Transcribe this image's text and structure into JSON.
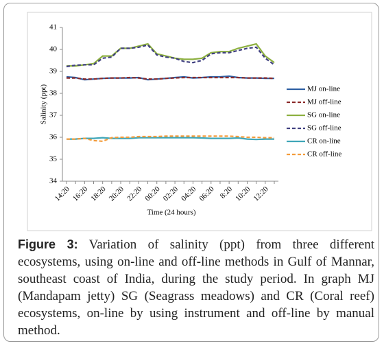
{
  "chart_data": {
    "type": "line",
    "y_label": "Salinity  (ppt)",
    "x_label": "Time  (24 hours)",
    "categories": [
      "14:20",
      null,
      "16:20",
      null,
      "18:20",
      null,
      "20:20",
      null,
      "22:20",
      null,
      "00:20",
      null,
      "02:20",
      null,
      "04:20",
      null,
      "06:20",
      null,
      "8:20",
      null,
      "10:20",
      null,
      "12:20",
      null
    ],
    "ylim": [
      34,
      41
    ],
    "yticks": [
      34,
      35,
      36,
      37,
      38,
      39,
      40,
      41
    ],
    "grid": false,
    "legend_position": "right",
    "series": [
      {
        "name": "MJ on-line",
        "color": "#2e5fa3",
        "dashed": false,
        "values": [
          38.75,
          38.72,
          38.62,
          38.65,
          38.68,
          38.7,
          38.7,
          38.7,
          38.72,
          38.62,
          38.65,
          38.68,
          38.72,
          38.75,
          38.7,
          38.72,
          38.75,
          38.75,
          38.78,
          38.72,
          38.7,
          38.7,
          38.68,
          38.68
        ]
      },
      {
        "name": "MJ off-line",
        "color": "#8b2a2a",
        "dashed": true,
        "values": [
          38.7,
          38.7,
          38.65,
          38.65,
          38.68,
          38.7,
          38.7,
          38.72,
          38.7,
          38.65,
          38.65,
          38.68,
          38.7,
          38.72,
          38.72,
          38.72,
          38.72,
          38.72,
          38.72,
          38.72,
          38.7,
          38.7,
          38.7,
          38.68
        ]
      },
      {
        "name": "SG on-line",
        "color": "#8db040",
        "dashed": false,
        "values": [
          39.25,
          39.25,
          39.3,
          39.35,
          39.7,
          39.7,
          40.05,
          40.05,
          40.15,
          40.25,
          39.8,
          39.7,
          39.6,
          39.55,
          39.55,
          39.6,
          39.85,
          39.9,
          39.9,
          40.05,
          40.15,
          40.25,
          39.7,
          39.4
        ]
      },
      {
        "name": "SG off-line",
        "color": "#404080",
        "dashed": true,
        "values": [
          39.22,
          39.28,
          39.3,
          39.3,
          39.6,
          39.65,
          40.05,
          40.05,
          40.1,
          40.2,
          39.75,
          39.65,
          39.6,
          39.45,
          39.4,
          39.5,
          39.8,
          39.85,
          39.85,
          39.95,
          40.05,
          40.1,
          39.6,
          39.3
        ]
      },
      {
        "name": "CR on-line",
        "color": "#3fa6b8",
        "dashed": false,
        "values": [
          35.92,
          35.92,
          35.95,
          35.95,
          35.98,
          35.95,
          35.95,
          35.95,
          35.98,
          35.98,
          35.98,
          35.98,
          35.98,
          35.98,
          35.98,
          35.97,
          35.95,
          35.95,
          35.95,
          35.97,
          35.92,
          35.9,
          35.92,
          35.92
        ]
      },
      {
        "name": "CR off-line",
        "color": "#f39c3c",
        "dashed": true,
        "values": [
          35.92,
          35.92,
          35.95,
          35.85,
          35.82,
          35.98,
          36.0,
          36.0,
          36.03,
          36.03,
          36.03,
          36.05,
          36.05,
          36.05,
          36.05,
          36.05,
          36.05,
          36.05,
          36.05,
          36.03,
          36.0,
          36.0,
          35.98,
          35.98
        ]
      }
    ]
  },
  "caption": {
    "label": "Figure 3:",
    "text": " Variation of salinity (ppt) from three different ecosystems, using on-line and off-line methods in Gulf of Mannar, southeast coast of India, during the study period. In graph MJ (Mandapam jetty) SG (Seagrass meadows) and CR (Coral reef) ecosystems, on-line by using instrument and off-line by manual method."
  }
}
